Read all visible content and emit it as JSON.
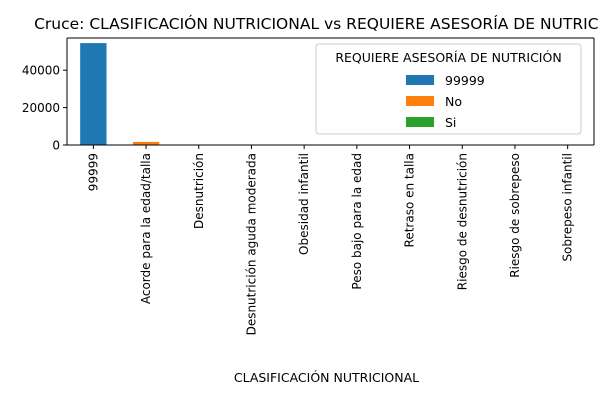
{
  "chart_data": {
    "type": "bar",
    "title": "Cruce: CLASIFICACIÓN NUTRICIONAL vs REQUIERE ASESORÍA DE NUTRICIÓN",
    "xlabel": "CLASIFICACIÓN NUTRICIONAL",
    "ylabel": "",
    "categories": [
      "99999",
      "Acorde para la edad/talla",
      "Desnutrición",
      "Desnutrición aguda moderada",
      "Obesidad infantil",
      "Peso bajo para la edad",
      "Retraso en talla",
      "Riesgo de desnutrición",
      "Riesgo de sobrepeso",
      "Sobrepeso infantil"
    ],
    "series": [
      {
        "name": "99999",
        "color": "#1f77b4",
        "values": [
          54500,
          0,
          0,
          0,
          0,
          0,
          0,
          0,
          0,
          0
        ]
      },
      {
        "name": "No",
        "color": "#ff7f0e",
        "values": [
          0,
          1600,
          30,
          10,
          15,
          10,
          10,
          20,
          15,
          10
        ]
      },
      {
        "name": "Si",
        "color": "#2ca02c",
        "values": [
          0,
          60,
          10,
          5,
          5,
          5,
          5,
          10,
          5,
          5
        ]
      }
    ],
    "stacked": true,
    "ylim": [
      0,
      57225
    ],
    "yticks": [
      0,
      20000,
      40000
    ],
    "ytick_labels": [
      "0",
      "20000",
      "40000"
    ],
    "legend": {
      "title": "REQUIERE ASESORÍA DE NUTRICIÓN",
      "placement": "top-right"
    },
    "grid": false
  }
}
